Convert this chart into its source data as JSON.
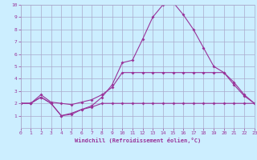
{
  "xlabel": "Windchill (Refroidissement éolien,°C)",
  "background_color": "#cceeff",
  "grid_color": "#aaaacc",
  "line_color": "#993399",
  "xmin": 0,
  "xmax": 23,
  "ymin": 0,
  "ymax": 10,
  "yticks": [
    1,
    2,
    3,
    4,
    5,
    6,
    7,
    8,
    9,
    10
  ],
  "xticks": [
    0,
    1,
    2,
    3,
    4,
    5,
    6,
    7,
    8,
    9,
    10,
    11,
    12,
    13,
    14,
    15,
    16,
    17,
    18,
    19,
    20,
    21,
    22,
    23
  ],
  "line1_x": [
    0,
    1,
    2,
    3,
    4,
    5,
    6,
    7,
    8,
    9,
    10,
    11,
    12,
    13,
    14,
    15,
    16,
    17,
    18,
    19,
    20,
    21,
    22,
    23
  ],
  "line1_y": [
    2.0,
    2.0,
    2.5,
    2.0,
    1.0,
    1.2,
    1.5,
    1.7,
    2.0,
    2.0,
    2.0,
    2.0,
    2.0,
    2.0,
    2.0,
    2.0,
    2.0,
    2.0,
    2.0,
    2.0,
    2.0,
    2.0,
    2.0,
    2.0
  ],
  "line2_x": [
    0,
    1,
    2,
    3,
    4,
    5,
    6,
    7,
    8,
    9,
    10,
    11,
    12,
    13,
    14,
    15,
    16,
    17,
    18,
    19,
    20,
    21,
    22,
    23
  ],
  "line2_y": [
    2.0,
    2.0,
    2.7,
    2.1,
    2.0,
    1.9,
    2.1,
    2.3,
    2.7,
    3.3,
    4.5,
    4.5,
    4.5,
    4.5,
    4.5,
    4.5,
    4.5,
    4.5,
    4.5,
    4.5,
    4.5,
    3.5,
    2.6,
    2.0
  ],
  "line3_x": [
    0,
    1,
    2,
    3,
    4,
    5,
    6,
    7,
    8,
    9,
    10,
    11,
    12,
    13,
    14,
    15,
    16,
    17,
    18,
    19,
    20,
    21,
    22,
    23
  ],
  "line3_y": [
    2.0,
    2.0,
    2.5,
    2.0,
    1.0,
    1.1,
    1.5,
    1.8,
    2.5,
    3.5,
    5.3,
    5.5,
    7.2,
    9.0,
    10.0,
    10.2,
    9.2,
    8.0,
    6.5,
    5.0,
    4.5,
    3.7,
    2.7,
    2.0
  ],
  "marker": "D",
  "markersize": 2,
  "linewidth": 0.8,
  "tick_fontsize": 4.5,
  "xlabel_fontsize": 5.0
}
